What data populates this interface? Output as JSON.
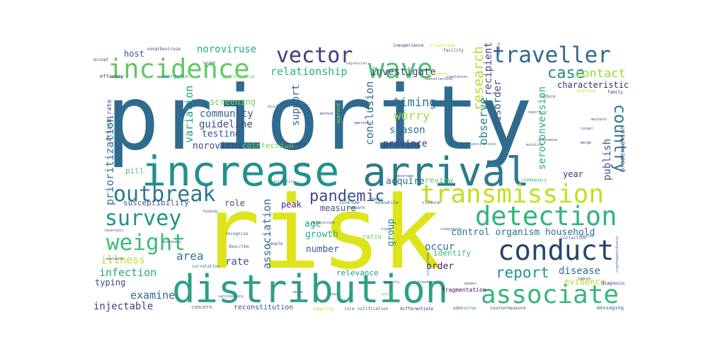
{
  "words": [
    {
      "text": "priority",
      "color": "#2f6b8e"
    },
    {
      "text": "risk",
      "color": "#dfe31a"
    },
    {
      "text": "increase",
      "color": "#21918c"
    },
    {
      "text": "arrival",
      "color": "#2b7b8c"
    },
    {
      "text": "distribution",
      "color": "#2e9f86"
    },
    {
      "text": "incidence",
      "color": "#5ec962"
    },
    {
      "text": "vector",
      "color": "#3b3b7e"
    },
    {
      "text": "wave",
      "color": "#4ac16d"
    },
    {
      "text": "traveller",
      "color": "#31688e"
    },
    {
      "text": "transmission",
      "color": "#c2df23"
    },
    {
      "text": "detection",
      "color": "#2fb47c"
    },
    {
      "text": "conduct",
      "color": "#26456e"
    },
    {
      "text": "associate",
      "color": "#35b779"
    },
    {
      "text": "outbreak",
      "color": "#2a788e"
    },
    {
      "text": "survey",
      "color": "#21918c"
    },
    {
      "text": "weight",
      "color": "#3dbc74"
    },
    {
      "text": "pandemic",
      "color": "#3e4c8a"
    },
    {
      "text": "country",
      "color": "#2a788e"
    },
    {
      "text": "case",
      "color": "#23898e"
    },
    {
      "text": "contact",
      "color": "#9bd93c"
    },
    {
      "text": "report",
      "color": "#1f968b"
    },
    {
      "text": "research",
      "color": "#b8de29"
    },
    {
      "text": "relationship",
      "color": "#28ae80"
    },
    {
      "text": "investigate",
      "color": "#443a83"
    },
    {
      "text": "noroviruse",
      "color": "#25ac82"
    },
    {
      "text": "host",
      "color": "#3b528b"
    },
    {
      "text": "timing",
      "color": "#2c728e"
    },
    {
      "text": "worry",
      "color": "#a5db36"
    },
    {
      "text": "community",
      "color": "#355f8d"
    },
    {
      "text": "guideline",
      "color": "#3e4a89"
    },
    {
      "text": "testing",
      "color": "#375a8c"
    },
    {
      "text": "norovirus",
      "color": "#414487"
    },
    {
      "text": "screening",
      "color": "#75d054"
    },
    {
      "text": "cointection",
      "color": "#6ccd5a"
    },
    {
      "text": "variation",
      "color": "#20a386"
    },
    {
      "text": "prioritization",
      "color": "#2a788e"
    },
    {
      "text": "conclusion",
      "color": "#2c728e"
    },
    {
      "text": "season",
      "color": "#2d708e"
    },
    {
      "text": "province",
      "color": "#46337f"
    },
    {
      "text": "support",
      "color": "#32658e"
    },
    {
      "text": "observe",
      "color": "#24868e"
    },
    {
      "text": "disorder",
      "color": "#3b528b"
    },
    {
      "text": "recipient",
      "color": "#414487"
    },
    {
      "text": "seroconversion",
      "color": "#27ad81"
    },
    {
      "text": "publish",
      "color": "#3a548c"
    },
    {
      "text": "year",
      "color": "#46327e"
    },
    {
      "text": "characteristic",
      "color": "#472a7a"
    },
    {
      "text": "susceptibility",
      "color": "#39568c"
    },
    {
      "text": "role",
      "color": "#3b528b"
    },
    {
      "text": "acquire",
      "color": "#2f6c8e"
    },
    {
      "text": "review",
      "color": "#5ec962"
    },
    {
      "text": "peak",
      "color": "#482576"
    },
    {
      "text": "measure",
      "color": "#3b528b"
    },
    {
      "text": "association",
      "color": "#2f6c8e"
    },
    {
      "text": "age",
      "color": "#1fa088"
    },
    {
      "text": "growth",
      "color": "#29af7f"
    },
    {
      "text": "group",
      "color": "#24868e"
    },
    {
      "text": "rate",
      "color": "#3b528b"
    },
    {
      "text": "number",
      "color": "#375b8d"
    },
    {
      "text": "occur",
      "color": "#2c728e"
    },
    {
      "text": "order",
      "color": "#482173"
    },
    {
      "text": "area",
      "color": "#2d718e"
    },
    {
      "text": "illness",
      "color": "#bade28"
    },
    {
      "text": "infection",
      "color": "#22a785"
    },
    {
      "text": "typing",
      "color": "#3e4989"
    },
    {
      "text": "examine",
      "color": "#31688e"
    },
    {
      "text": "injectable",
      "color": "#433e85"
    },
    {
      "text": "disease",
      "color": "#2d708e"
    },
    {
      "text": "evidence",
      "color": "#aadc32"
    },
    {
      "text": "control organism household",
      "color": "#2d708e"
    },
    {
      "text": "relevance",
      "color": "#1f9e89"
    },
    {
      "text": "reconstitution",
      "color": "#3c4f8a"
    },
    {
      "text": "pill",
      "color": "#4ac16d"
    },
    {
      "text": "identify",
      "color": "#3dbc74"
    },
    {
      "text": "presentation",
      "color": "#3e4a89"
    },
    {
      "text": "ratio",
      "color": "#5ec962"
    },
    {
      "text": "attack_rate",
      "color": "#3e4a89"
    },
    {
      "text": "fragmentation",
      "color": "#46085c"
    },
    {
      "text": "efficacy",
      "color": "#482878"
    },
    {
      "text": "approve",
      "color": "#8fd744"
    },
    {
      "text": "emergence",
      "color": "#20928c"
    },
    {
      "text": "sponsorship",
      "color": "#6ccd5a"
    },
    {
      "text": "accept",
      "color": "#3e4c8a"
    },
    {
      "text": "nonarboviruse",
      "color": "#46337f"
    },
    {
      "text": "inexperience",
      "color": "#472c7a"
    },
    {
      "text": "illustrate",
      "color": "#c2df23"
    },
    {
      "text": "facility",
      "color": "#3b528b"
    },
    {
      "text": "family",
      "color": "#482878"
    },
    {
      "text": "dialing",
      "color": "#b8de29"
    },
    {
      "text": "messaging",
      "color": "#35608d"
    },
    {
      "text": "diagnosis",
      "color": "#482173"
    },
    {
      "text": "concern",
      "color": "#31688e"
    },
    {
      "text": "sampling",
      "color": "#bade28"
    },
    {
      "text": "rule",
      "color": "#31688e"
    },
    {
      "text": "notification",
      "color": "#2f6b8e"
    },
    {
      "text": "differentiate",
      "color": "#482475"
    },
    {
      "text": "admovirus",
      "color": "#2d708e"
    },
    {
      "text": "countermeasure",
      "color": "#3e4a89"
    },
    {
      "text": "reduce",
      "color": "#2f6b8e"
    },
    {
      "text": "inadequacy",
      "color": "#28ae80"
    },
    {
      "text": "mean",
      "color": "#2c728e"
    },
    {
      "text": "syndrome",
      "color": "#2d708e"
    },
    {
      "text": "meanwhile",
      "color": "#2c728e"
    },
    {
      "text": "closure",
      "color": "#3b528b"
    },
    {
      "text": "compare",
      "color": "#3b528b"
    },
    {
      "text": "collection",
      "color": "#2f6b8e"
    },
    {
      "text": "recognize",
      "color": "#2f6b8e"
    },
    {
      "text": "people",
      "color": "#3e4a89"
    },
    {
      "text": "describe",
      "color": "#2f6b8e"
    },
    {
      "text": "correlation",
      "color": "#2a788e"
    },
    {
      "text": "positivity",
      "color": "#482878"
    },
    {
      "text": "method",
      "color": "#3e4a89"
    },
    {
      "text": "availability",
      "color": "#2a788e"
    },
    {
      "text": "awareness",
      "color": "#31688e"
    },
    {
      "text": "congregate",
      "color": "#31688e"
    },
    {
      "text": "sunrise",
      "color": "#46337f"
    },
    {
      "text": "sponge",
      "color": "#75d054"
    },
    {
      "text": "vendor",
      "color": "#3e4a89"
    },
    {
      "text": "evaluate",
      "color": "#46337f"
    },
    {
      "text": "serve",
      "color": "#3e4a89"
    },
    {
      "text": "system",
      "color": "#31688e"
    },
    {
      "text": "funding",
      "color": "#3b528b"
    },
    {
      "text": "reservoir",
      "color": "#3e4a89"
    },
    {
      "text": "trace",
      "color": "#3b528b"
    },
    {
      "text": "sample",
      "color": "#3e4a89"
    },
    {
      "text": "unfinished",
      "color": "#2c728e"
    },
    {
      "text": "mutation",
      "color": "#31688e"
    },
    {
      "text": "deteriorate",
      "color": "#3e4a89"
    },
    {
      "text": "merge",
      "color": "#46337f"
    },
    {
      "text": "reporting",
      "color": "#31688e"
    },
    {
      "text": "dominance",
      "color": "#3e4a89"
    },
    {
      "text": "cryptosporidiosis",
      "color": "#3b528b"
    },
    {
      "text": "proportion",
      "color": "#c2df23"
    },
    {
      "text": "transferability",
      "color": "#31688e"
    },
    {
      "text": "noncollection",
      "color": "#3e4a89"
    },
    {
      "text": "treatment",
      "color": "#31688e"
    },
    {
      "text": "severity",
      "color": "#3e4a89"
    },
    {
      "text": "discipline",
      "color": "#2f6b8e"
    },
    {
      "text": "operator",
      "color": "#46337f"
    },
    {
      "text": "pier",
      "color": "#3e4a89"
    },
    {
      "text": "incorporate",
      "color": "#2f6b8e"
    },
    {
      "text": "vaccinations",
      "color": "#3b528b"
    },
    {
      "text": "vaccinations",
      "color": "#2f6b8e"
    },
    {
      "text": "episode",
      "color": "#3e4a89"
    },
    {
      "text": "regression",
      "color": "#2c728e"
    },
    {
      "text": "simulation",
      "color": "#3e4a89"
    },
    {
      "text": "ignore",
      "color": "#46337f"
    },
    {
      "text": "mustard",
      "color": "#3e4a89"
    },
    {
      "text": "longer",
      "color": "#31688e"
    },
    {
      "text": "beverage",
      "color": "#3b528b"
    }
  ]
}
